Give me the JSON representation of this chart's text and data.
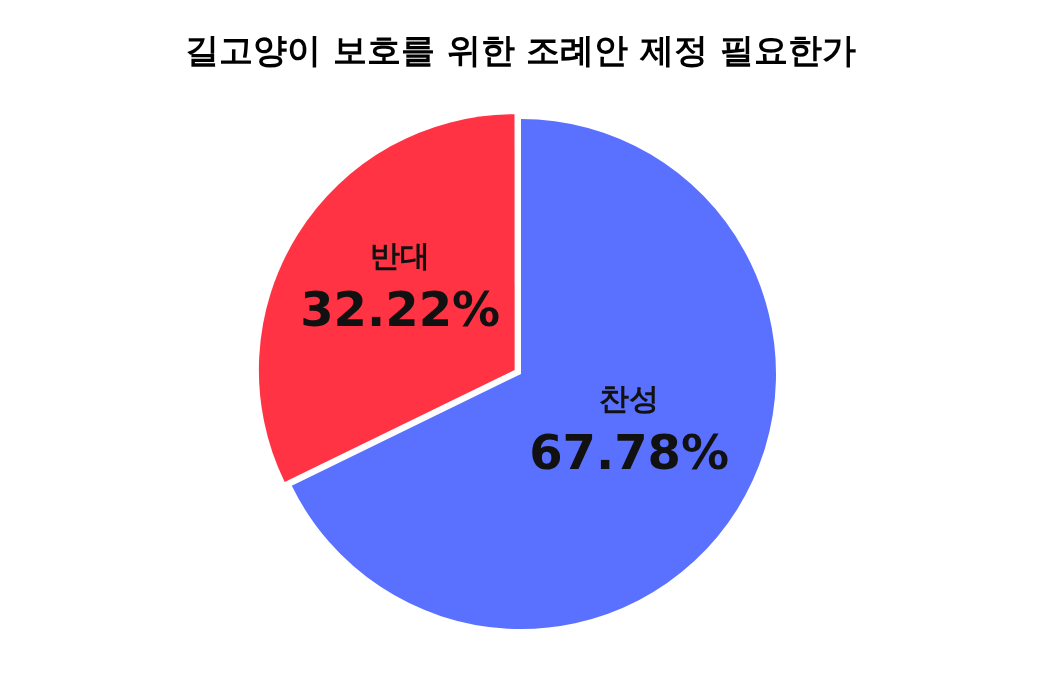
{
  "chart_data": {
    "type": "pie",
    "title": "길고양이 보호를 위한 조례안 제정 필요한가",
    "categories": [
      "반대",
      "찬성"
    ],
    "values": [
      32.22,
      67.78
    ],
    "colors": [
      "#ff3344",
      "#5a70ff"
    ],
    "value_labels": [
      "32.22%",
      "67.78%"
    ],
    "legend": false
  }
}
